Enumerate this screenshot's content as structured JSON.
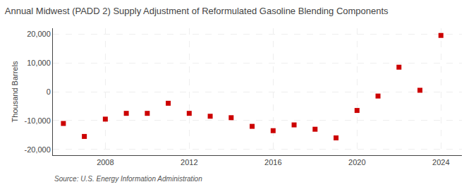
{
  "chart_data": {
    "type": "scatter",
    "title": "Annual Midwest (PADD 2) Supply Adjustment of Reformulated Gasoline Blending Components",
    "ylabel": "Thousand Barrels",
    "annotations": [
      "Source: U.S. Energy Information Administration"
    ],
    "x": [
      2006,
      2007,
      2008,
      2009,
      2010,
      2011,
      2012,
      2013,
      2014,
      2015,
      2016,
      2017,
      2018,
      2019,
      2020,
      2021,
      2022,
      2023,
      2024
    ],
    "values": [
      -11000,
      -15500,
      -9500,
      -7500,
      -7500,
      -4000,
      -7500,
      -8500,
      -9000,
      -12000,
      -13500,
      -11500,
      -13000,
      -16000,
      -6500,
      -1500,
      8500,
      500,
      19500
    ],
    "color": "#cc0000",
    "marker": "square",
    "xlim": [
      2005.5,
      2025
    ],
    "ylim": [
      -22000,
      22000
    ],
    "xticks": [
      2008,
      2012,
      2016,
      2020,
      2024
    ],
    "yticks": [
      {
        "value": -20000,
        "label": "-20,000"
      },
      {
        "value": -10000,
        "label": "-10,000"
      },
      0,
      {
        "value": 10000,
        "label": "10,000"
      },
      {
        "value": 20000,
        "label": "20,000"
      }
    ],
    "grid": true
  }
}
